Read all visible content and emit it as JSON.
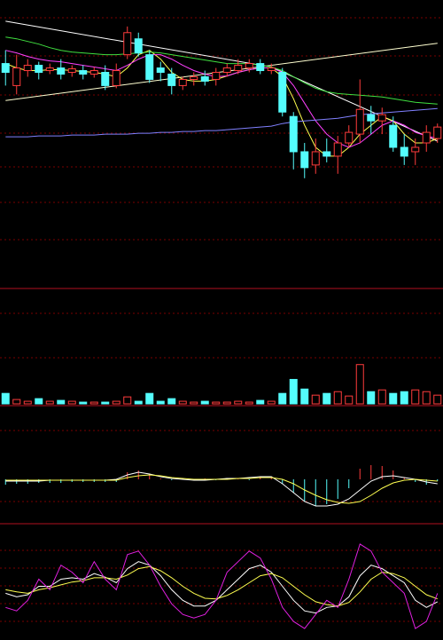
{
  "chart_data": [
    {
      "type": "candlestick",
      "up_color": "#ff3c3c",
      "down_color": "#54fcfc",
      "ylim": [
        0,
        325
      ],
      "open": [
        255,
        230,
        247,
        253,
        247,
        250,
        245,
        247,
        243,
        245,
        230,
        265,
        283,
        265,
        250,
        243,
        230,
        237,
        240,
        237,
        245,
        247,
        250,
        255,
        247,
        245,
        195,
        155,
        140,
        155,
        150,
        165,
        175,
        197,
        190,
        185,
        160,
        155,
        165,
        170
      ],
      "close": [
        245,
        250,
        253,
        245,
        250,
        243,
        249,
        243,
        247,
        230,
        247,
        290,
        267,
        237,
        245,
        230,
        237,
        240,
        235,
        245,
        250,
        253,
        255,
        247,
        250,
        200,
        155,
        137,
        155,
        150,
        165,
        177,
        203,
        190,
        197,
        160,
        150,
        160,
        177,
        183
      ],
      "high": [
        270,
        265,
        260,
        257,
        255,
        260,
        253,
        253,
        251,
        253,
        255,
        297,
        290,
        270,
        257,
        250,
        240,
        245,
        247,
        250,
        255,
        260,
        260,
        260,
        255,
        250,
        200,
        165,
        170,
        170,
        173,
        185,
        237,
        207,
        205,
        195,
        175,
        170,
        185,
        187
      ],
      "low": [
        230,
        220,
        240,
        237,
        243,
        237,
        240,
        237,
        239,
        225,
        227,
        260,
        263,
        233,
        235,
        220,
        225,
        230,
        230,
        230,
        240,
        243,
        245,
        243,
        243,
        195,
        135,
        125,
        130,
        143,
        130,
        160,
        165,
        175,
        175,
        155,
        140,
        140,
        155,
        165
      ],
      "series": [
        {
          "color": "#ffff50",
          "values": [
            255,
            250,
            247,
            247,
            248,
            248,
            247,
            246,
            245,
            243,
            240,
            250,
            265,
            270,
            260,
            245,
            237,
            235,
            235,
            237,
            241,
            245,
            248,
            250,
            250,
            240,
            215,
            185,
            160,
            150,
            150,
            160,
            175,
            185,
            195,
            190,
            175,
            165,
            165,
            170
          ]
        },
        {
          "color": "#ff40ff",
          "values": [
            270,
            267,
            263,
            260,
            258,
            257,
            255,
            253,
            251,
            249,
            247,
            253,
            260,
            265,
            265,
            260,
            253,
            247,
            243,
            240,
            241,
            245,
            248,
            250,
            250,
            245,
            230,
            210,
            190,
            175,
            165,
            160,
            165,
            175,
            185,
            190,
            185,
            177,
            173,
            170
          ]
        },
        {
          "color": "#40e040",
          "values": [
            285,
            283,
            280,
            277,
            273,
            270,
            268,
            267,
            266,
            265,
            265,
            266,
            267,
            268,
            267,
            265,
            263,
            261,
            259,
            257,
            255,
            255,
            255,
            253,
            251,
            247,
            240,
            233,
            227,
            223,
            221,
            220,
            219,
            218,
            217,
            215,
            213,
            211,
            210,
            209
          ]
        },
        {
          "color": "#8080ff",
          "values": [
            172,
            172,
            172,
            173,
            173,
            173,
            174,
            174,
            174,
            175,
            175,
            175,
            176,
            176,
            177,
            177,
            178,
            178,
            179,
            179,
            180,
            181,
            182,
            183,
            184,
            187,
            189,
            190,
            191,
            192,
            193,
            195,
            197,
            198,
            199,
            200,
            201,
            202,
            203,
            204
          ]
        }
      ],
      "trendlines": [
        {
          "color": "#ffffff",
          "x": [
            0,
            24,
            39
          ],
          "y": [
            303,
            251,
            167
          ]
        },
        {
          "color": "#ffffd0",
          "x": [
            0,
            39
          ],
          "y": [
            213,
            278
          ]
        }
      ]
    },
    {
      "type": "volume",
      "ylim": [
        0,
        125
      ],
      "values": [
        12,
        5,
        3,
        6,
        3,
        4,
        3,
        2,
        2,
        2,
        3,
        8,
        3,
        12,
        3,
        6,
        3,
        2,
        3,
        2,
        2,
        3,
        2,
        4,
        3,
        12,
        28,
        17,
        10,
        12,
        14,
        9,
        45,
        14,
        16,
        12,
        14,
        16,
        14,
        10
      ]
    },
    {
      "type": "macd",
      "ylim": [
        -50,
        80
      ],
      "up_color": "#ff3c3c",
      "down_color": "#54fcfc",
      "values": [
        -6,
        -5,
        -5,
        -4,
        -4,
        -4,
        -3,
        -3,
        -3,
        -3,
        -3,
        8,
        10,
        6,
        1,
        -1,
        1,
        -1,
        1,
        -1,
        1,
        1,
        -1,
        3,
        2,
        -5,
        -15,
        -25,
        -30,
        -28,
        -22,
        -10,
        12,
        16,
        15,
        10,
        2,
        -3,
        -6,
        -2
      ],
      "series": [
        {
          "color": "#ffffff",
          "values": [
            -2,
            -2,
            -2,
            -2,
            -1,
            -1,
            -1,
            -1,
            -1,
            -1,
            0,
            5,
            8,
            6,
            3,
            1,
            0,
            -1,
            -1,
            0,
            1,
            1,
            2,
            3,
            3,
            -5,
            -15,
            -25,
            -30,
            -30,
            -28,
            -22,
            -12,
            -2,
            3,
            4,
            2,
            0,
            -3,
            -5
          ]
        },
        {
          "color": "#ffff50",
          "values": [
            -1,
            -1,
            -1,
            -1,
            -1,
            -1,
            -1,
            -1,
            -1,
            -1,
            -1,
            2,
            4,
            5,
            4,
            2,
            1,
            0,
            0,
            0,
            0,
            1,
            1,
            2,
            2,
            0,
            -5,
            -12,
            -18,
            -23,
            -26,
            -27,
            -25,
            -18,
            -10,
            -4,
            -1,
            0,
            -1,
            -2
          ]
        }
      ]
    },
    {
      "type": "line",
      "ylim": [
        -20,
        130
      ],
      "series": [
        {
          "color": "#ffffff",
          "values": [
            40,
            35,
            38,
            50,
            50,
            60,
            62,
            60,
            68,
            63,
            55,
            75,
            85,
            80,
            65,
            45,
            30,
            22,
            22,
            30,
            45,
            60,
            75,
            80,
            70,
            50,
            30,
            15,
            12,
            20,
            22,
            35,
            65,
            80,
            75,
            65,
            55,
            30,
            20,
            28
          ]
        },
        {
          "color": "#ffff50",
          "values": [
            45,
            42,
            40,
            45,
            48,
            52,
            56,
            58,
            62,
            62,
            60,
            66,
            75,
            78,
            72,
            62,
            50,
            40,
            33,
            32,
            37,
            45,
            55,
            65,
            68,
            62,
            50,
            38,
            28,
            24,
            22,
            27,
            42,
            60,
            70,
            68,
            62,
            50,
            38,
            32
          ]
        },
        {
          "color": "#e020e0",
          "values": [
            20,
            15,
            30,
            60,
            45,
            80,
            70,
            55,
            85,
            60,
            45,
            95,
            100,
            80,
            50,
            25,
            10,
            5,
            10,
            30,
            70,
            85,
            100,
            90,
            60,
            20,
            0,
            -10,
            10,
            30,
            20,
            60,
            110,
            100,
            70,
            55,
            40,
            -10,
            0,
            40
          ]
        }
      ]
    }
  ]
}
